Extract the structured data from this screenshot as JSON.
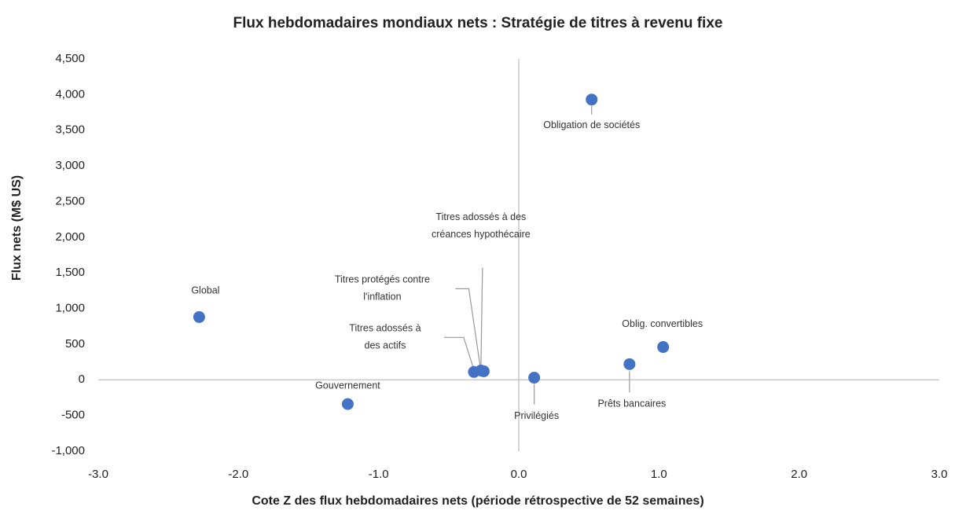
{
  "chart_data": {
    "type": "scatter",
    "title": "Flux hebdomadaires mondiaux nets : Stratégie de titres à revenu fixe",
    "xlabel": "Cote Z des flux hebdomadaires nets (période rétrospective de 52 semaines)",
    "ylabel": "Flux nets (M$ US)",
    "color": "#4472c4",
    "x": [
      -2.28,
      -1.22,
      -0.32,
      -0.25,
      -0.27,
      0.11,
      0.79,
      1.03,
      0.52
    ],
    "values": [
      880,
      -340,
      110,
      120,
      130,
      30,
      220,
      460,
      3930
    ],
    "labels": [
      [
        "Global"
      ],
      [
        "Gouvernement"
      ],
      [
        "Titres adossés à",
        "des actifs"
      ],
      [
        "Titres protégés contre",
        "l'inflation"
      ],
      [
        "Titres adossés à des",
        "créances hypothécaire"
      ],
      [
        "Privilégiés"
      ],
      [
        "Prêts bancaires"
      ],
      [
        "Oblig. convertibles"
      ],
      [
        "Obligation de sociétés"
      ]
    ],
    "xlim": [
      -3,
      3
    ],
    "xticks": [
      {
        "value": -3,
        "label": "-3.0"
      },
      {
        "value": -2,
        "label": "-2.0"
      },
      {
        "value": -1,
        "label": "-1.0"
      },
      {
        "value": 0,
        "label": "0.0"
      },
      {
        "value": 1,
        "label": "1.0"
      },
      {
        "value": 2,
        "label": "2.0"
      },
      {
        "value": 3,
        "label": "3.0"
      }
    ],
    "ylim": [
      -1000,
      4500
    ],
    "yticks": [
      {
        "value": -1000,
        "label": "-1,000"
      },
      -500,
      0,
      500,
      {
        "value": 1000,
        "label": "1,000"
      },
      {
        "value": 1500,
        "label": "1,500"
      },
      {
        "value": 2000,
        "label": "2,000"
      },
      {
        "value": 2500,
        "label": "2,500"
      },
      {
        "value": 3000,
        "label": "3,000"
      },
      {
        "value": 3500,
        "label": "3,500"
      },
      {
        "value": 4000,
        "label": "4,000"
      },
      {
        "value": 4500,
        "label": "4,500"
      }
    ]
  }
}
